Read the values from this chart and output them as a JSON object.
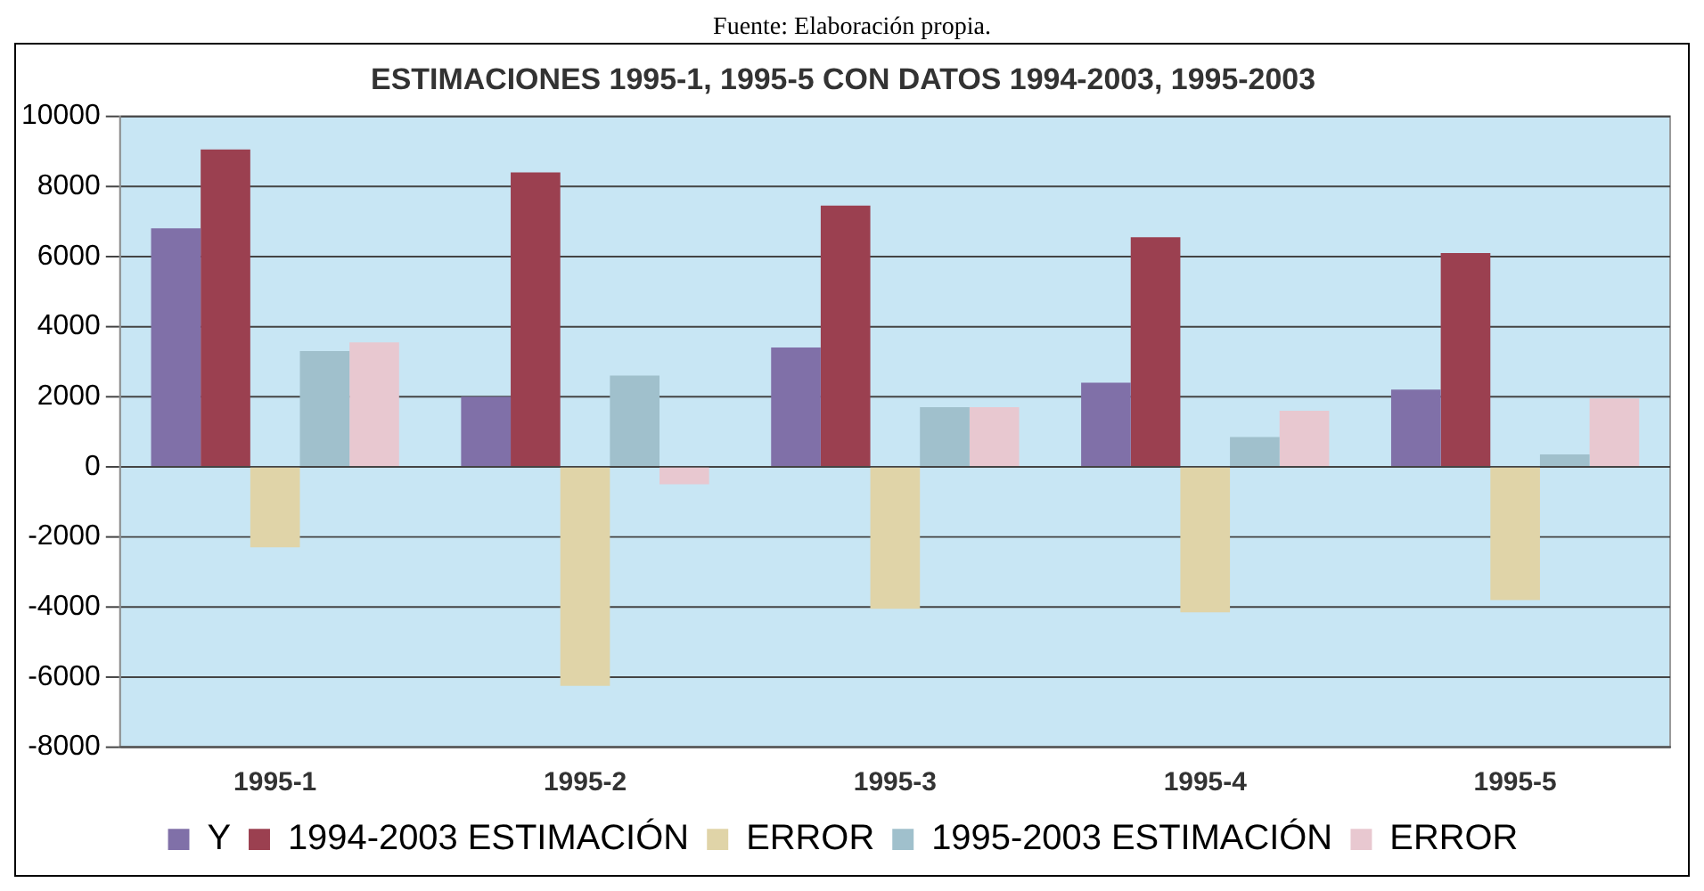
{
  "chart_data": {
    "type": "bar",
    "title": "ESTIMACIONES 1995-1, 1995-5 CON DATOS 1994-2003, 1995-2003",
    "annotations": [
      "Fuente: Elaboración propia."
    ],
    "categories": [
      "1995-1",
      "1995-2",
      "1995-3",
      "1995-4",
      "1995-5"
    ],
    "series": [
      {
        "name": "Y",
        "color": "#8070a8",
        "values": [
          6800,
          2000,
          3400,
          2400,
          2200
        ]
      },
      {
        "name": "1994-2003 ESTIMACIÓN",
        "color": "#9b4050",
        "values": [
          9050,
          8400,
          7450,
          6550,
          6100
        ]
      },
      {
        "name": "ERROR",
        "color": "#e0d4a8",
        "values": [
          -2300,
          -6250,
          -4050,
          -4150,
          -3800
        ]
      },
      {
        "name": "1995-2003 ESTIMACIÓN",
        "color": "#a0c0cc",
        "values": [
          3300,
          2600,
          1700,
          850,
          350
        ]
      },
      {
        "name": "ERROR",
        "color": "#e8c8d0",
        "values": [
          3550,
          -500,
          1700,
          1600,
          1950
        ]
      }
    ],
    "ylim": [
      -8000,
      10000
    ],
    "yticks": [
      -8000,
      -6000,
      -4000,
      -2000,
      0,
      2000,
      4000,
      6000,
      8000,
      10000
    ],
    "grid": "y",
    "legend": "bottom"
  }
}
